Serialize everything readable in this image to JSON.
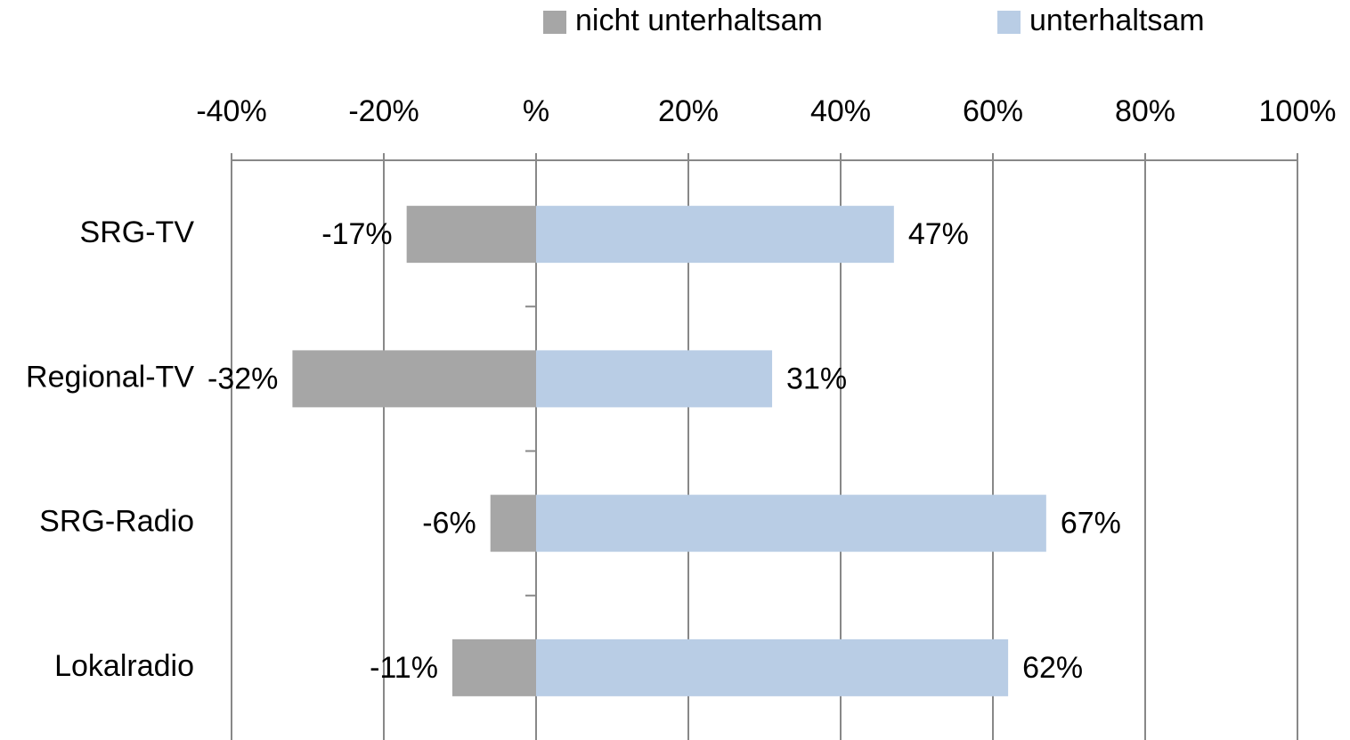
{
  "chart_data": {
    "type": "diverging-bar",
    "categories": [
      "SRG-TV",
      "Regional-TV",
      "SRG-Radio",
      "Lokalradio"
    ],
    "series": [
      {
        "name": "nicht unterhaltsam",
        "color": "#a6a6a6",
        "values": [
          -17,
          -32,
          -6,
          -11
        ],
        "value_labels": [
          "-17%",
          "-32%",
          "-6%",
          "-11%"
        ]
      },
      {
        "name": "unterhaltsam",
        "color": "#b9cde5",
        "values": [
          47,
          31,
          67,
          62
        ],
        "value_labels": [
          "47%",
          "31%",
          "67%",
          "62%"
        ]
      }
    ],
    "xlim": [
      -40,
      100
    ],
    "xticks": [
      {
        "value": -40,
        "label": "-40%"
      },
      {
        "value": -20,
        "label": "-20%"
      },
      {
        "value": 0,
        "label": "%"
      },
      {
        "value": 20,
        "label": "20%"
      },
      {
        "value": 40,
        "label": "40%"
      },
      {
        "value": 60,
        "label": "60%"
      },
      {
        "value": 80,
        "label": "80%"
      },
      {
        "value": 100,
        "label": "100%"
      }
    ],
    "grid": true,
    "legend": "top"
  }
}
